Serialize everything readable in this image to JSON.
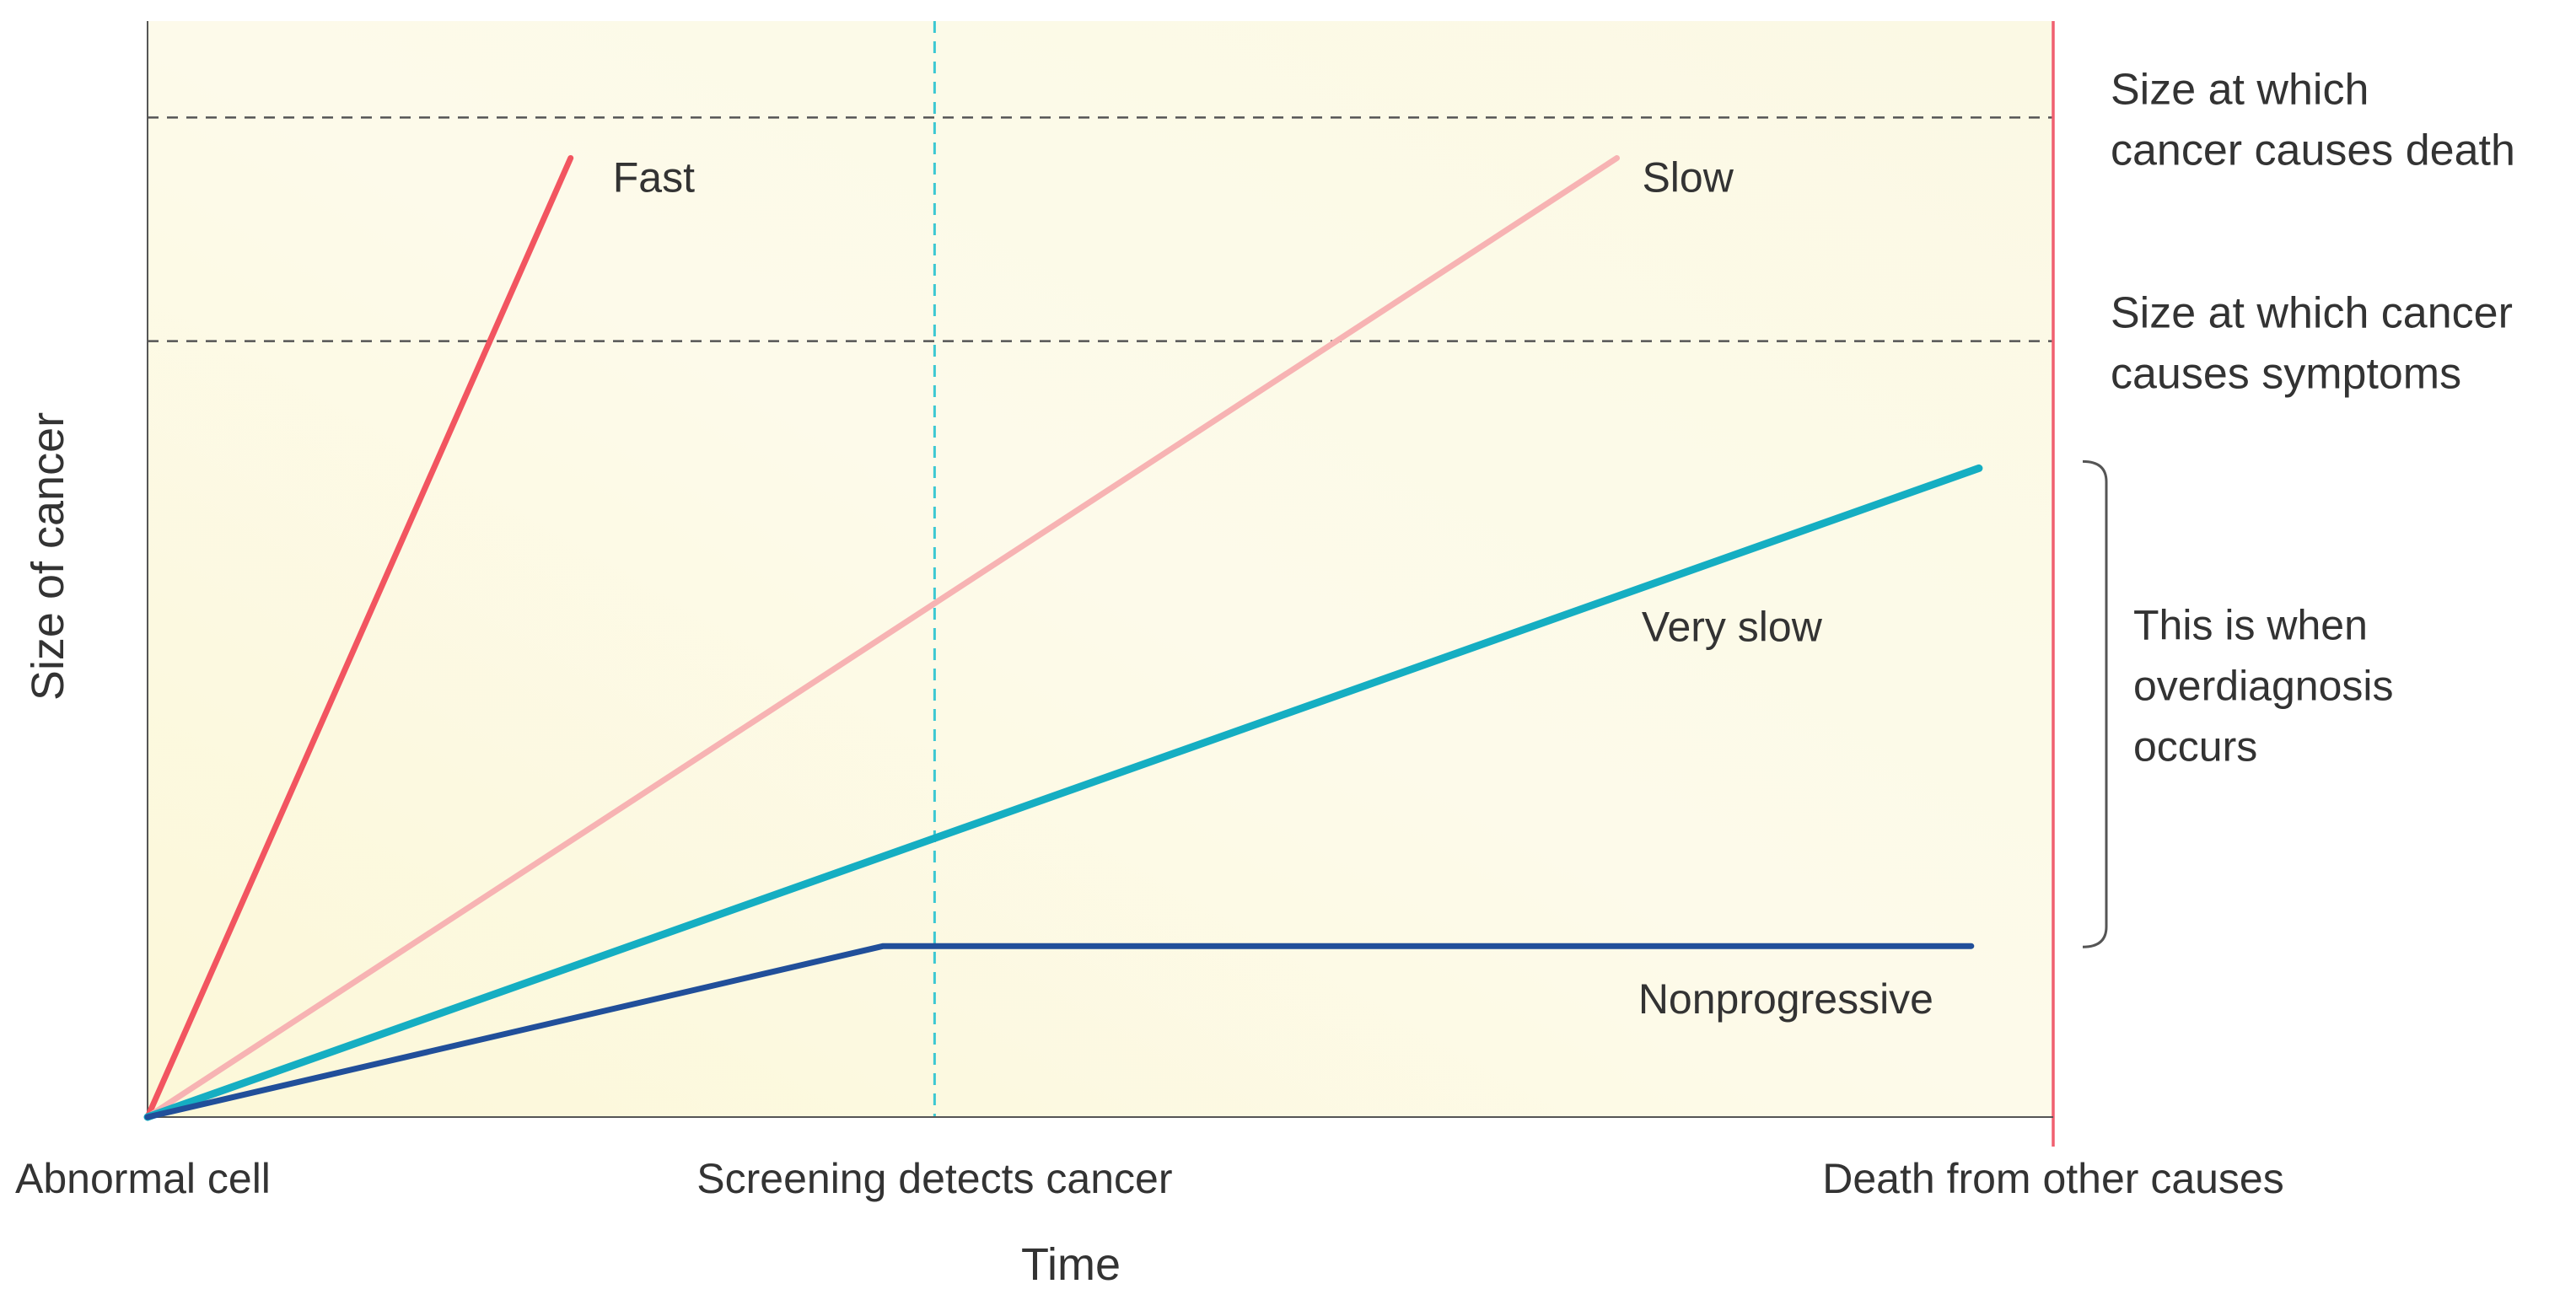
{
  "chart_data": {
    "type": "line",
    "title": "",
    "xlabel": "Time",
    "ylabel": "Size of cancer",
    "xlim": [
      0,
      100
    ],
    "ylim": [
      0,
      100
    ],
    "x_markers": [
      {
        "x": 0,
        "label": "Abnormal cell"
      },
      {
        "x": 41.3,
        "label": "Screening detects cancer",
        "style": "dashed",
        "color": "#3cc8d2"
      },
      {
        "x": 100,
        "label": "Death from other causes",
        "style": "solid",
        "color": "#f06070"
      }
    ],
    "thresholds": [
      {
        "y": 91.2,
        "label_lines": [
          "Size at which",
          "cancer causes death"
        ]
      },
      {
        "y": 70.8,
        "label_lines": [
          "Size at which cancer",
          "causes symptoms"
        ]
      }
    ],
    "series": [
      {
        "name": "Fast",
        "color": "#f25560",
        "width": 7,
        "x": [
          0,
          22.2
        ],
        "y": [
          0,
          87.5
        ]
      },
      {
        "name": "Slow",
        "color": "#f7b3b3",
        "width": 7,
        "x": [
          0,
          77.1
        ],
        "y": [
          0,
          87.5
        ]
      },
      {
        "name": "Very slow",
        "color": "#15aec2",
        "width": 9,
        "x": [
          0,
          96.1
        ],
        "y": [
          0,
          59.2
        ]
      },
      {
        "name": "Nonprogressive",
        "color": "#214f9a",
        "width": 7,
        "x": [
          0,
          38.6,
          95.7
        ],
        "y": [
          0,
          15.6,
          15.6
        ]
      }
    ],
    "annotation": {
      "text_lines": [
        "This is when",
        "overdiagnosis",
        "occurs"
      ],
      "y_range": [
        15.6,
        59.2
      ]
    },
    "grid": false,
    "legend": "inline labels"
  }
}
